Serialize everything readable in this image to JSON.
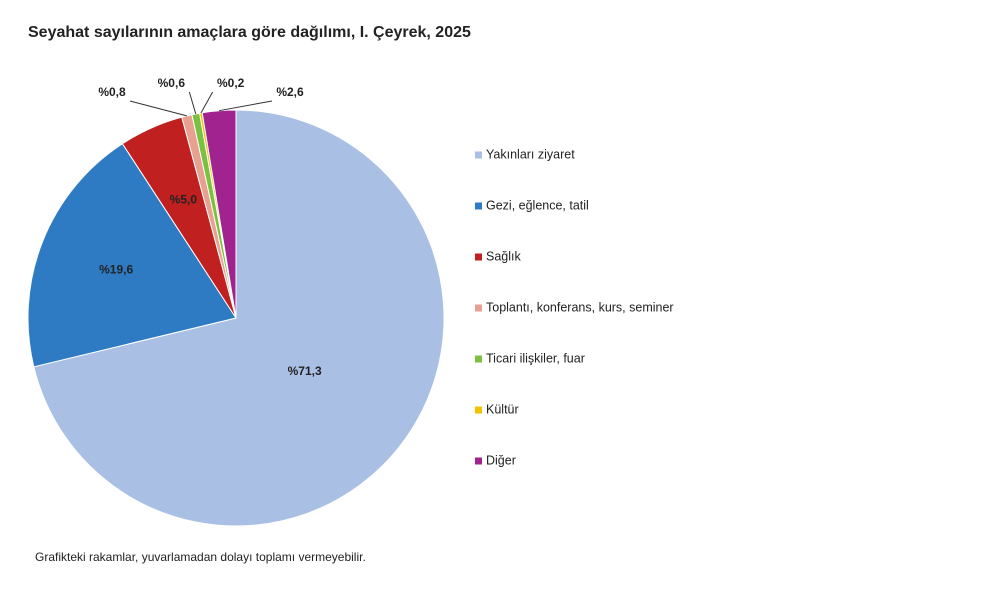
{
  "chart_data": {
    "type": "pie",
    "title": "Seyahat sayılarının amaçlara göre dağılımı, I. Çeyrek, 2025",
    "categories": [
      "Yakınları ziyaret",
      "Gezi, eğlence, tatil",
      "Sağlık",
      "Toplantı, konferans, kurs, seminer",
      "Ticari ilişkiler, fuar",
      "Kültür",
      "Diğer"
    ],
    "values": [
      71.3,
      19.6,
      5.0,
      0.8,
      0.6,
      0.2,
      2.6
    ],
    "value_labels": [
      "%71,3",
      "%19,6",
      "%5,0",
      "%0,8",
      "%0,6",
      "%0,2",
      "%2,6"
    ],
    "colors": [
      "#a9c0e4",
      "#2e7bc4",
      "#c0201f",
      "#e8a090",
      "#7ac142",
      "#f2c200",
      "#a0238f"
    ],
    "note": "Grafikteki rakamlar, yuvarlamadan dolayı toplamı vermeyebilir."
  }
}
